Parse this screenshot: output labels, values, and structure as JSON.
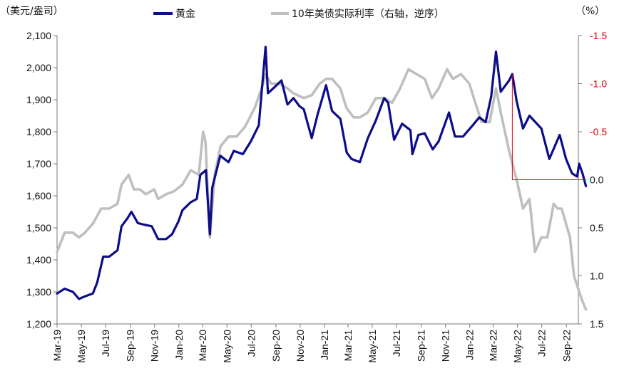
{
  "chart_data": {
    "type": "line",
    "left_axis_unit": "（美元/盎司）",
    "right_axis_unit": "（%）",
    "ylim_left": [
      1200,
      2100
    ],
    "yticks_left": [
      "1,200",
      "1,300",
      "1,400",
      "1,500",
      "1,600",
      "1,700",
      "1,800",
      "1,900",
      "2,000",
      "2,100"
    ],
    "yticks_left_values": [
      1200,
      1300,
      1400,
      1500,
      1600,
      1700,
      1800,
      1900,
      2000,
      2100
    ],
    "ylim_right": [
      1.5,
      -1.5
    ],
    "right_axis_reversed": true,
    "yticks_right": [
      "-1.5",
      "-1.0",
      "-0.5",
      "0.0",
      "0.5",
      "1.0",
      "1.5"
    ],
    "yticks_right_values": [
      -1.5,
      -1.0,
      -0.5,
      0.0,
      0.5,
      1.0,
      1.5
    ],
    "x_categories": [
      "Mar-19",
      "May-19",
      "Jul-19",
      "Sep-19",
      "Nov-19",
      "Jan-20",
      "Mar-20",
      "May-20",
      "Jul-20",
      "Sep-20",
      "Nov-20",
      "Jan-21",
      "Mar-21",
      "May-21",
      "Jul-21",
      "Sep-21",
      "Nov-21",
      "Jan-22",
      "Mar-22",
      "May-22",
      "Jul-22",
      "Sep-22"
    ],
    "x_start": "2019-03",
    "x_end": "2022-10",
    "series": [
      {
        "name": "黄金",
        "axis": "left",
        "color": "#0d0d8a",
        "points": [
          [
            "2019-03-01",
            1295
          ],
          [
            "2019-03-20",
            1310
          ],
          [
            "2019-04-10",
            1300
          ],
          [
            "2019-04-25",
            1278
          ],
          [
            "2019-05-10",
            1286
          ],
          [
            "2019-05-30",
            1295
          ],
          [
            "2019-06-10",
            1330
          ],
          [
            "2019-06-25",
            1410
          ],
          [
            "2019-07-10",
            1410
          ],
          [
            "2019-07-31",
            1430
          ],
          [
            "2019-08-10",
            1505
          ],
          [
            "2019-08-25",
            1530
          ],
          [
            "2019-09-04",
            1550
          ],
          [
            "2019-09-20",
            1515
          ],
          [
            "2019-10-05",
            1510
          ],
          [
            "2019-10-25",
            1505
          ],
          [
            "2019-11-10",
            1465
          ],
          [
            "2019-11-30",
            1465
          ],
          [
            "2019-12-15",
            1480
          ],
          [
            "2019-12-31",
            1520
          ],
          [
            "2020-01-10",
            1555
          ],
          [
            "2020-01-31",
            1580
          ],
          [
            "2020-02-15",
            1590
          ],
          [
            "2020-02-24",
            1665
          ],
          [
            "2020-03-09",
            1680
          ],
          [
            "2020-03-19",
            1480
          ],
          [
            "2020-03-25",
            1625
          ],
          [
            "2020-04-14",
            1725
          ],
          [
            "2020-05-05",
            1705
          ],
          [
            "2020-05-18",
            1740
          ],
          [
            "2020-06-10",
            1730
          ],
          [
            "2020-06-30",
            1770
          ],
          [
            "2020-07-20",
            1820
          ],
          [
            "2020-08-06",
            2065
          ],
          [
            "2020-08-12",
            1920
          ],
          [
            "2020-08-25",
            1935
          ],
          [
            "2020-09-15",
            1960
          ],
          [
            "2020-09-30",
            1885
          ],
          [
            "2020-10-15",
            1905
          ],
          [
            "2020-10-30",
            1880
          ],
          [
            "2020-11-10",
            1870
          ],
          [
            "2020-11-30",
            1780
          ],
          [
            "2020-12-15",
            1855
          ],
          [
            "2021-01-05",
            1945
          ],
          [
            "2021-01-20",
            1865
          ],
          [
            "2021-02-10",
            1840
          ],
          [
            "2021-02-26",
            1735
          ],
          [
            "2021-03-10",
            1715
          ],
          [
            "2021-03-31",
            1705
          ],
          [
            "2021-04-20",
            1780
          ],
          [
            "2021-05-10",
            1835
          ],
          [
            "2021-05-31",
            1905
          ],
          [
            "2021-06-10",
            1890
          ],
          [
            "2021-06-25",
            1775
          ],
          [
            "2021-07-15",
            1825
          ],
          [
            "2021-08-05",
            1805
          ],
          [
            "2021-08-10",
            1730
          ],
          [
            "2021-08-25",
            1790
          ],
          [
            "2021-09-10",
            1795
          ],
          [
            "2021-09-30",
            1745
          ],
          [
            "2021-10-15",
            1770
          ],
          [
            "2021-11-10",
            1860
          ],
          [
            "2021-11-25",
            1785
          ],
          [
            "2021-12-15",
            1785
          ],
          [
            "2022-01-05",
            1815
          ],
          [
            "2022-01-25",
            1845
          ],
          [
            "2022-02-10",
            1830
          ],
          [
            "2022-02-24",
            1910
          ],
          [
            "2022-03-08",
            2050
          ],
          [
            "2022-03-20",
            1925
          ],
          [
            "2022-04-10",
            1960
          ],
          [
            "2022-04-18",
            1980
          ],
          [
            "2022-04-29",
            1895
          ],
          [
            "2022-05-15",
            1810
          ],
          [
            "2022-05-31",
            1850
          ],
          [
            "2022-06-15",
            1830
          ],
          [
            "2022-06-30",
            1810
          ],
          [
            "2022-07-20",
            1715
          ],
          [
            "2022-08-15",
            1790
          ],
          [
            "2022-08-31",
            1715
          ],
          [
            "2022-09-15",
            1670
          ],
          [
            "2022-09-28",
            1660
          ],
          [
            "2022-10-03",
            1700
          ],
          [
            "2022-10-12",
            1668
          ],
          [
            "2022-10-20",
            1630
          ]
        ]
      },
      {
        "name": "10年美债实际利率（右轴，逆序）",
        "axis": "right",
        "color": "#bfbfbf",
        "points": [
          [
            "2019-03-01",
            0.75
          ],
          [
            "2019-03-20",
            0.55
          ],
          [
            "2019-04-10",
            0.55
          ],
          [
            "2019-04-25",
            0.6
          ],
          [
            "2019-05-10",
            0.55
          ],
          [
            "2019-05-31",
            0.45
          ],
          [
            "2019-06-20",
            0.3
          ],
          [
            "2019-07-10",
            0.3
          ],
          [
            "2019-07-31",
            0.25
          ],
          [
            "2019-08-10",
            0.05
          ],
          [
            "2019-08-28",
            -0.05
          ],
          [
            "2019-09-10",
            0.1
          ],
          [
            "2019-09-25",
            0.1
          ],
          [
            "2019-10-10",
            0.15
          ],
          [
            "2019-10-31",
            0.1
          ],
          [
            "2019-11-10",
            0.2
          ],
          [
            "2019-11-30",
            0.15
          ],
          [
            "2019-12-20",
            0.12
          ],
          [
            "2020-01-10",
            0.05
          ],
          [
            "2020-01-31",
            -0.1
          ],
          [
            "2020-02-20",
            -0.05
          ],
          [
            "2020-03-02",
            -0.5
          ],
          [
            "2020-03-08",
            -0.4
          ],
          [
            "2020-03-19",
            0.6
          ],
          [
            "2020-03-31",
            -0.05
          ],
          [
            "2020-04-15",
            -0.35
          ],
          [
            "2020-05-05",
            -0.45
          ],
          [
            "2020-05-25",
            -0.45
          ],
          [
            "2020-06-15",
            -0.55
          ],
          [
            "2020-07-10",
            -0.75
          ],
          [
            "2020-07-31",
            -1.0
          ],
          [
            "2020-08-06",
            -1.1
          ],
          [
            "2020-08-20",
            -1.0
          ],
          [
            "2020-09-10",
            -1.0
          ],
          [
            "2020-09-30",
            -0.95
          ],
          [
            "2020-10-15",
            -0.9
          ],
          [
            "2020-11-10",
            -0.85
          ],
          [
            "2020-11-30",
            -0.88
          ],
          [
            "2020-12-20",
            -1.0
          ],
          [
            "2021-01-05",
            -1.05
          ],
          [
            "2021-01-20",
            -1.05
          ],
          [
            "2021-02-10",
            -0.95
          ],
          [
            "2021-02-25",
            -0.75
          ],
          [
            "2021-03-15",
            -0.65
          ],
          [
            "2021-03-31",
            -0.65
          ],
          [
            "2021-04-20",
            -0.7
          ],
          [
            "2021-05-10",
            -0.85
          ],
          [
            "2021-05-31",
            -0.85
          ],
          [
            "2021-06-20",
            -0.8
          ],
          [
            "2021-07-10",
            -0.95
          ],
          [
            "2021-07-31",
            -1.15
          ],
          [
            "2021-08-20",
            -1.1
          ],
          [
            "2021-09-10",
            -1.05
          ],
          [
            "2021-09-28",
            -0.85
          ],
          [
            "2021-10-15",
            -0.95
          ],
          [
            "2021-11-05",
            -1.15
          ],
          [
            "2021-11-20",
            -1.05
          ],
          [
            "2021-12-10",
            -1.1
          ],
          [
            "2021-12-31",
            -1.0
          ],
          [
            "2022-01-15",
            -0.8
          ],
          [
            "2022-01-31",
            -0.6
          ],
          [
            "2022-02-20",
            -0.6
          ],
          [
            "2022-03-08",
            -0.95
          ],
          [
            "2022-03-20",
            -0.7
          ],
          [
            "2022-04-10",
            -0.3
          ],
          [
            "2022-04-29",
            0.0
          ],
          [
            "2022-05-15",
            0.3
          ],
          [
            "2022-05-31",
            0.2
          ],
          [
            "2022-06-14",
            0.75
          ],
          [
            "2022-06-30",
            0.6
          ],
          [
            "2022-07-15",
            0.6
          ],
          [
            "2022-07-31",
            0.25
          ],
          [
            "2022-08-10",
            0.3
          ],
          [
            "2022-08-20",
            0.3
          ],
          [
            "2022-09-10",
            0.6
          ],
          [
            "2022-09-20",
            1.0
          ],
          [
            "2022-10-10",
            1.25
          ],
          [
            "2022-10-20",
            1.35
          ]
        ]
      }
    ],
    "annotation": {
      "type": "red-bracket",
      "color": "#e0000f",
      "from": "2022-04-18",
      "to": "2022-10-20",
      "gold_top": 1980,
      "gold_bottom": 1650
    }
  }
}
